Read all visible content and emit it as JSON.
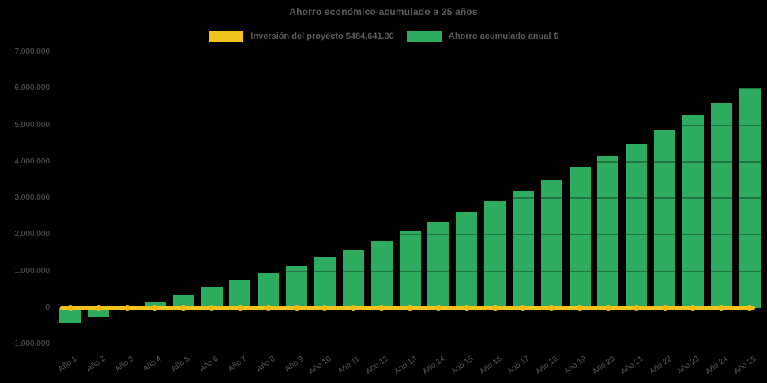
{
  "page": {
    "background": "#000000"
  },
  "chart": {
    "title": "Ahorro económico acumulado a 25 años",
    "legend": {
      "investment_label": "Inversión del proyecto $484,641.30",
      "savings_label": "Ahorro acumulado anual $"
    },
    "colors": {
      "investment_line": "#F0C41A",
      "investment_marker": "#EDBD12",
      "savings_bar": "#2DAC60",
      "text": "#595959",
      "background": "#000000"
    }
  },
  "chart_data": {
    "type": "bar",
    "title": "Ahorro económico acumulado a 25 años",
    "categories": [
      "Año 1",
      "Año 2",
      "Año 3",
      "Año 4",
      "Año 5",
      "Año 6",
      "Año 7",
      "Año 8",
      "Año 9",
      "Año 10",
      "Año 11",
      "Año 12",
      "Año 13",
      "Año 14",
      "Año 15",
      "Año 16",
      "Año 17",
      "Año 18",
      "Año 19",
      "Año 20",
      "Año 21",
      "Año 22",
      "Año 23",
      "Año 24",
      "Año 25"
    ],
    "series": [
      {
        "name": "Ahorro acumulado anual $",
        "type": "bar",
        "color": "#2DAC60",
        "values": [
          -400000,
          -250000,
          -60000,
          150000,
          360000,
          560000,
          760000,
          940000,
          1140000,
          1380000,
          1590000,
          1840000,
          2110000,
          2360000,
          2630000,
          2940000,
          3200000,
          3490000,
          3850000,
          4160000,
          4500000,
          4870000,
          5260000,
          5620000,
          6020000
        ]
      },
      {
        "name": "Inversión del proyecto $484,641.30",
        "type": "line",
        "color": "#F0C41A",
        "stated_value": 484641.3,
        "drawn_at_value": 0,
        "markers": "circle",
        "marker_count": 25
      }
    ],
    "xlabel": "",
    "ylabel": "",
    "ylim": [
      -1000000,
      7000000
    ],
    "ytick_step": 1000000,
    "ytick_values": [
      7000000,
      6000000,
      5000000,
      4000000,
      3000000,
      2000000,
      1000000,
      0,
      -1000000
    ],
    "ytick_labels": [
      "7.000.000",
      "6.000.000",
      "5.000.000",
      "4.000.000",
      "3.000.000",
      "2.000.000",
      "1.000.000",
      "0",
      "-1.000.000"
    ],
    "xtick_rotation_deg": -36,
    "legend_position": "top-center",
    "grid": "horizontal, very faint (visible only over bars)",
    "background": "black"
  }
}
